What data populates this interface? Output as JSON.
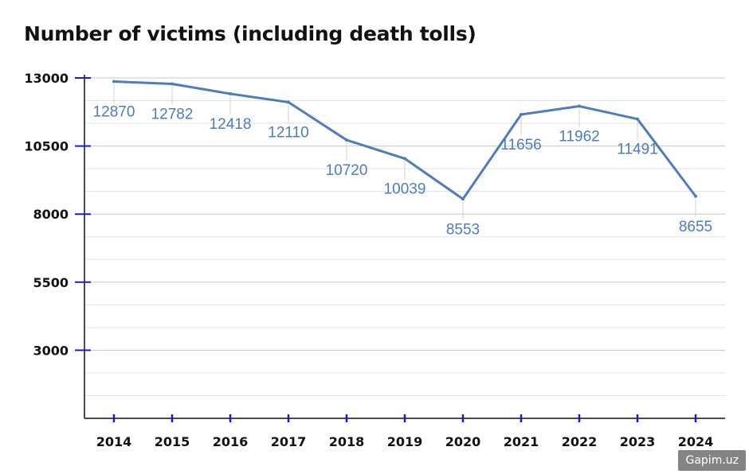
{
  "title": "Number of victims (including death tolls)",
  "watermark": "Gapim.uz",
  "colors": {
    "line": "#4f7cbc",
    "data_label": "#4f7cbc",
    "axis": "#111111",
    "tick_mark": "#1a1ad0",
    "grid_major": "#c8c8c8",
    "grid_minor": "#e3e3e3",
    "leader": "#d0d0d0"
  },
  "chart_data": {
    "type": "line",
    "title": "Number of victims (including death tolls)",
    "xlabel": "",
    "ylabel": "",
    "categories": [
      "2014",
      "2015",
      "2016",
      "2017",
      "2018",
      "2019",
      "2020",
      "2021",
      "2022",
      "2023",
      "2024"
    ],
    "series": [
      {
        "values": [
          12870,
          12782,
          12418,
          12110,
          10720,
          10039,
          8553,
          11656,
          11962,
          11491,
          8655
        ]
      }
    ],
    "y_ticks": [
      3000,
      5500,
      8000,
      10500,
      13000
    ],
    "ylim": [
      500,
      13000
    ],
    "grid": true,
    "legend": "none"
  }
}
